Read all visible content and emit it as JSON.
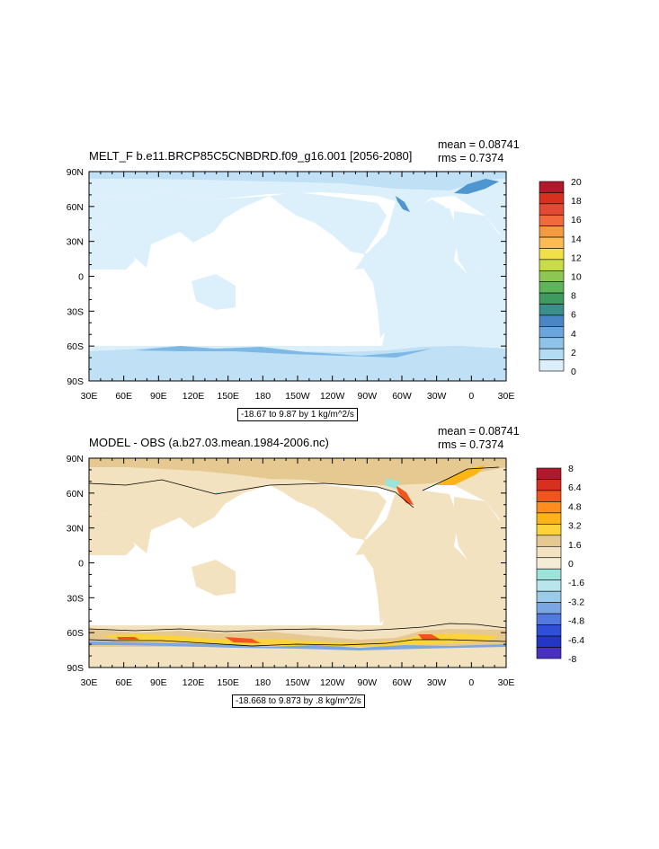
{
  "panels": [
    {
      "title": "MELT_F b.e11.BRCP85C5CNBDRD.f09_g16.001 [2056-2080]",
      "mean": "mean = 0.08741",
      "rms": "rms = 0.7374",
      "range_label": "-18.67 to 9.87 by 1 kg/m^2/s",
      "colorbar": {
        "labels": [
          "20",
          "18",
          "16",
          "14",
          "12",
          "10",
          "8",
          "6",
          "4",
          "2",
          "0"
        ],
        "colors": [
          "#b2182b",
          "#d7301f",
          "#e34a33",
          "#f16a3c",
          "#f49a40",
          "#fdbb52",
          "#f2e049",
          "#c7dc46",
          "#8ec653",
          "#5fb45a",
          "#3f9a62",
          "#3b8f8a",
          "#4a86c5",
          "#6aa6dd",
          "#8fc3ea",
          "#b2dcf4",
          "#dbeefa"
        ]
      },
      "fill": {
        "land_bg": "#dcf0fb",
        "ocean": "#ffffff",
        "ice_light": "#bfe0f5",
        "ice_mid": "#7eb9e5",
        "ice_dark": "#4f96d0"
      }
    },
    {
      "title": "MODEL - OBS (a.b27.03.mean.1984-2006.nc)",
      "mean": "mean = 0.08741",
      "rms": "rms = 0.7374",
      "range_label": "-18.668 to 9.873 by .8 kg/m^2/s",
      "colorbar": {
        "labels": [
          "8",
          "6.4",
          "4.8",
          "3.2",
          "1.6",
          "0",
          "-1.6",
          "-3.2",
          "-4.8",
          "-6.4",
          "-8"
        ],
        "colors": [
          "#b2182b",
          "#d7301f",
          "#f0551e",
          "#fd8d1f",
          "#fdb416",
          "#fdd33a",
          "#e6c891",
          "#f2e2c0",
          "#f5ecd6",
          "#9ce3da",
          "#b8e6ee",
          "#9ccbe8",
          "#7aa6e3",
          "#5279e0",
          "#2f4fd6",
          "#2436c5",
          "#4a30c0"
        ]
      },
      "fill": {
        "land_bg": "#f2e2c0",
        "ocean": "#ffffff",
        "pos_low": "#e6c891",
        "pos_mid": "#fdd33a",
        "pos_high": "#fdb416",
        "pos_top": "#f0551e",
        "neg_low": "#9ce3da",
        "neg_mid": "#7aa6e3",
        "neg_high": "#2f4fd6"
      }
    }
  ],
  "axes": {
    "lat_labels": [
      "90N",
      "60N",
      "30N",
      "0",
      "30S",
      "60S",
      "90S"
    ],
    "lon_labels": [
      "30E",
      "60E",
      "90E",
      "120E",
      "150E",
      "180",
      "150W",
      "120W",
      "90W",
      "60W",
      "30W",
      "0",
      "30E"
    ]
  }
}
